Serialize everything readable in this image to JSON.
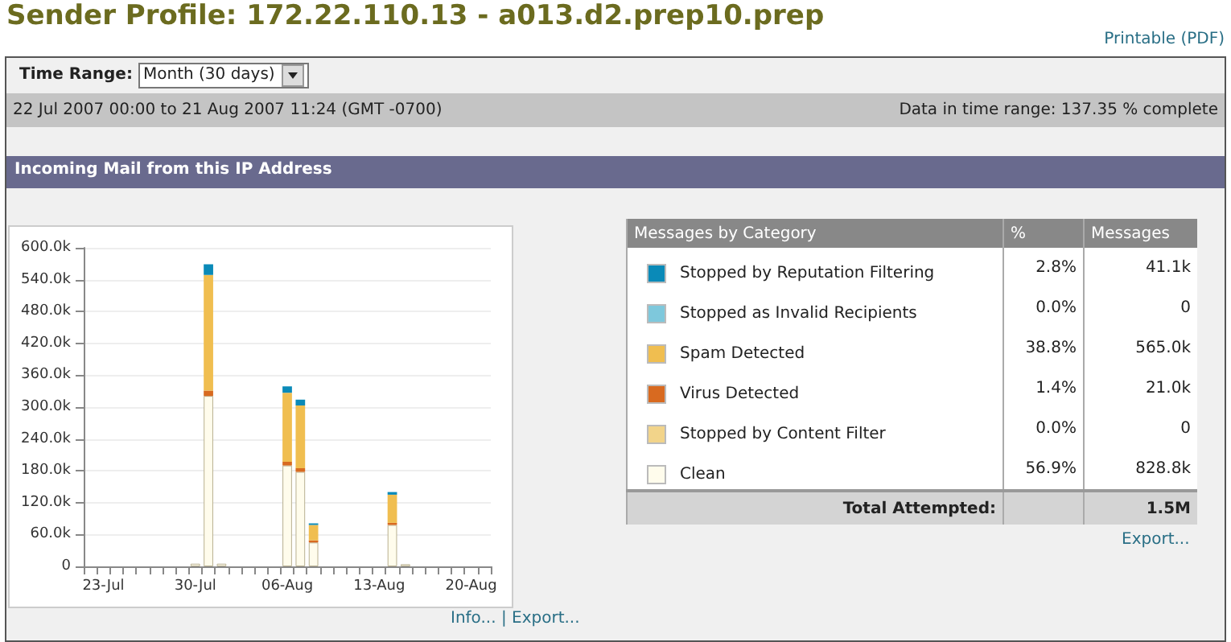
{
  "chart_data": [
    {
      "type": "bar",
      "title": "Sender Profile: 172.22.110.13 - a013.d2.prep10.prep",
      "subtitle": "Incoming Mail from this IP Address",
      "annotations": [
        "Printable (PDF)",
        "Time Range:",
        "Month (30 days)",
        "22 Jul 2007 00:00 to 21 Aug 2007 11:24 (GMT -0700)",
        "Data in time range: 137.35 % complete",
        "Info... | Export..."
      ],
      "categories": [
        null,
        "23-Jul",
        null,
        null,
        null,
        null,
        null,
        null,
        "30-Jul",
        null,
        null,
        null,
        null,
        null,
        null,
        "06-Aug",
        null,
        null,
        null,
        null,
        null,
        null,
        "13-Aug",
        null,
        null,
        null,
        null,
        null,
        null,
        "20-Aug",
        null
      ],
      "stacked": true,
      "grid": "y",
      "legend": "right",
      "ylim": [
        0,
        600
      ],
      "yticks": [
        0,
        {
          "value": 60,
          "label": "60.0k"
        },
        {
          "value": 120,
          "label": "120.0k"
        },
        {
          "value": 180,
          "label": "180.0k"
        },
        {
          "value": 240,
          "label": "240.0k"
        },
        {
          "value": 300,
          "label": "300.0k"
        },
        {
          "value": 360,
          "label": "360.0k"
        },
        {
          "value": 420,
          "label": "420.0k"
        },
        {
          "value": 480,
          "label": "480.0k"
        },
        {
          "value": 540,
          "label": "540.0k"
        },
        {
          "value": 600,
          "label": "600.0k"
        }
      ],
      "series": [
        {
          "name": "Clean",
          "color": "#fffcec",
          "values": [
            0,
            0,
            0,
            0,
            0,
            0,
            0,
            0,
            5,
            321,
            5,
            0,
            0,
            0,
            0,
            190,
            178,
            45,
            0,
            0,
            0,
            0,
            0,
            78,
            4,
            0,
            0,
            0,
            0,
            0,
            0
          ]
        },
        {
          "name": "Stopped by Content Filter",
          "color": "#f2d48a",
          "values": [
            0,
            0,
            0,
            0,
            0,
            0,
            0,
            0,
            0,
            0,
            0,
            0,
            0,
            0,
            0,
            0,
            0,
            0,
            0,
            0,
            0,
            0,
            0,
            0,
            0,
            0,
            0,
            0,
            0,
            0,
            0
          ]
        },
        {
          "name": "Virus Detected",
          "color": "#d86a20",
          "values": [
            0,
            0,
            0,
            0,
            0,
            0,
            0,
            0,
            0,
            10,
            0,
            0,
            0,
            0,
            0,
            7,
            7,
            4,
            0,
            0,
            0,
            0,
            0,
            4,
            0,
            0,
            0,
            0,
            0,
            0,
            0
          ]
        },
        {
          "name": "Spam Detected",
          "color": "#f0be50",
          "values": [
            0,
            0,
            0,
            0,
            0,
            0,
            0,
            0,
            0,
            218,
            0,
            0,
            0,
            0,
            0,
            130,
            118,
            29,
            0,
            0,
            0,
            0,
            0,
            53,
            0,
            0,
            0,
            0,
            0,
            0,
            0
          ]
        },
        {
          "name": "Stopped as Invalid Recipients",
          "color": "#7ec8dc",
          "values": [
            0,
            0,
            0,
            0,
            0,
            0,
            0,
            0,
            0,
            0,
            0,
            0,
            0,
            0,
            0,
            0,
            0,
            0,
            0,
            0,
            0,
            0,
            0,
            0,
            0,
            0,
            0,
            0,
            0,
            0,
            0
          ]
        },
        {
          "name": "Stopped by Reputation Filtering",
          "color": "#0a8ab8",
          "values": [
            0,
            0,
            0,
            0,
            0,
            0,
            0,
            0,
            null,
            20,
            null,
            0,
            0,
            0,
            0,
            12,
            11,
            3,
            0,
            0,
            0,
            0,
            0,
            5,
            null,
            0,
            0,
            0,
            0,
            0,
            0
          ]
        }
      ]
    },
    {
      "type": "other",
      "title": "Messages by Category",
      "annotations": [
        "%",
        "Messages",
        "2.8%",
        "41.1k",
        "0.0%",
        "0",
        "38.8%",
        "565.0k",
        "1.4%",
        "21.0k",
        "0.0%",
        "0",
        "56.9%",
        "828.8k",
        "Total Attempted:",
        "1.5M",
        "Export..."
      ]
    }
  ]
}
